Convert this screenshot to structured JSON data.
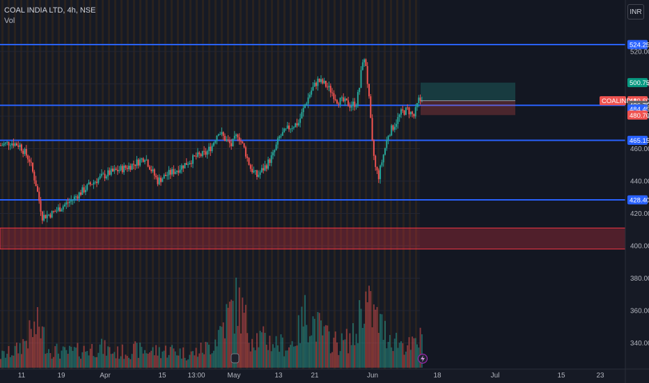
{
  "header": {
    "symbol_line": "COAL INDIA LTD, 4h, NSE",
    "volume_label": "Vol",
    "currency_button": "INR"
  },
  "colors": {
    "background": "#161a25",
    "up": "#26a69a",
    "down": "#ef5350",
    "level_line": "#2962ff",
    "zone": "#f23645",
    "grid_stripe": "#3a2a1a"
  },
  "chart_data": {
    "type": "candlestick",
    "symbol": "COALINDIA",
    "timeframe": "4h",
    "exchange": "NSE",
    "ylim": [
      332,
      546
    ],
    "y_ticks": [
      340,
      360,
      380,
      400,
      420,
      440,
      460,
      480,
      500,
      520
    ],
    "x_ticks": [
      "11",
      "19",
      "Apr",
      "15",
      "13:00",
      "May",
      "13",
      "21",
      "Jun",
      "18",
      "Jul",
      "15",
      "23"
    ],
    "horizontal_levels": [
      524.25,
      486.75,
      465.15,
      428.4
    ],
    "zone": {
      "from": 398,
      "to": 411
    },
    "position": {
      "target": 500.75,
      "entry": 489.6,
      "reference": 484.45,
      "stop": 480.7
    },
    "price_labels": [
      {
        "value": 524.25,
        "text": "524.25",
        "kind": "level"
      },
      {
        "value": 500.75,
        "text": "500.75",
        "kind": "target"
      },
      {
        "value": 489.6,
        "text": "489.60",
        "kind": "last",
        "symbol": "COALINDIA"
      },
      {
        "value": 486.75,
        "text": "486.75",
        "kind": "gray"
      },
      {
        "value": 484.45,
        "text": "484.45",
        "kind": "level"
      },
      {
        "value": 480.7,
        "text": "480.70",
        "kind": "stop"
      },
      {
        "value": 465.15,
        "text": "465.15",
        "kind": "level"
      },
      {
        "value": 428.4,
        "text": "428.40",
        "kind": "level"
      }
    ],
    "close_anchors": [
      [
        0,
        462
      ],
      [
        6,
        464
      ],
      [
        12,
        462
      ],
      [
        18,
        453
      ],
      [
        22,
        438
      ],
      [
        26,
        418
      ],
      [
        32,
        420
      ],
      [
        38,
        424
      ],
      [
        44,
        428
      ],
      [
        50,
        433
      ],
      [
        56,
        438
      ],
      [
        62,
        442
      ],
      [
        68,
        445
      ],
      [
        74,
        447
      ],
      [
        80,
        449
      ],
      [
        86,
        452
      ],
      [
        90,
        455
      ],
      [
        94,
        447
      ],
      [
        98,
        440
      ],
      [
        104,
        444
      ],
      [
        110,
        447
      ],
      [
        116,
        451
      ],
      [
        122,
        455
      ],
      [
        128,
        457
      ],
      [
        132,
        462
      ],
      [
        136,
        471
      ],
      [
        140,
        466
      ],
      [
        144,
        462
      ],
      [
        148,
        469
      ],
      [
        152,
        460
      ],
      [
        156,
        448
      ],
      [
        160,
        443
      ],
      [
        166,
        450
      ],
      [
        170,
        456
      ],
      [
        174,
        467
      ],
      [
        180,
        473
      ],
      [
        186,
        476
      ],
      [
        190,
        487
      ],
      [
        194,
        496
      ],
      [
        198,
        502
      ],
      [
        202,
        500
      ],
      [
        206,
        496
      ],
      [
        210,
        490
      ],
      [
        214,
        489
      ],
      [
        218,
        487
      ],
      [
        222,
        488
      ],
      [
        224,
        498
      ],
      [
        226,
        515
      ],
      [
        228,
        512
      ],
      [
        230,
        490
      ],
      [
        232,
        463
      ],
      [
        234,
        448
      ],
      [
        236,
        443
      ],
      [
        238,
        452
      ],
      [
        242,
        469
      ],
      [
        246,
        475
      ],
      [
        250,
        482
      ],
      [
        254,
        484
      ],
      [
        258,
        480
      ],
      [
        261,
        490
      ],
      [
        263,
        489.6
      ]
    ],
    "volume_anchors": [
      [
        0,
        20
      ],
      [
        10,
        30
      ],
      [
        18,
        55
      ],
      [
        24,
        72
      ],
      [
        30,
        32
      ],
      [
        40,
        25
      ],
      [
        52,
        30
      ],
      [
        62,
        35
      ],
      [
        72,
        25
      ],
      [
        84,
        30
      ],
      [
        96,
        28
      ],
      [
        108,
        30
      ],
      [
        118,
        22
      ],
      [
        132,
        38
      ],
      [
        140,
        80
      ],
      [
        148,
        112
      ],
      [
        156,
        55
      ],
      [
        164,
        48
      ],
      [
        172,
        42
      ],
      [
        180,
        35
      ],
      [
        186,
        60
      ],
      [
        190,
        90
      ],
      [
        196,
        75
      ],
      [
        204,
        50
      ],
      [
        212,
        40
      ],
      [
        222,
        55
      ],
      [
        226,
        120
      ],
      [
        230,
        100
      ],
      [
        234,
        85
      ],
      [
        240,
        60
      ],
      [
        248,
        45
      ],
      [
        256,
        35
      ],
      [
        263,
        50
      ]
    ],
    "volume_max": 160
  }
}
